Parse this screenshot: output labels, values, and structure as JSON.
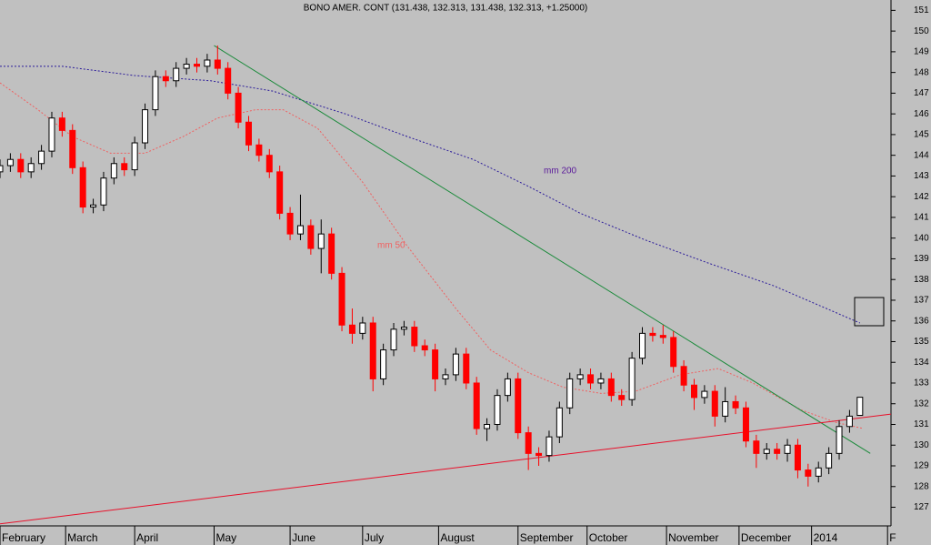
{
  "chart_data": {
    "type": "candlestick",
    "title": "BONO AMER. CONT (131.438, 132.313, 131.438, 132.313, +1.25000)",
    "up_color": "#000000",
    "down_color": "#ff0000",
    "x": [
      0,
      3,
      6,
      9,
      12,
      15,
      18,
      21,
      24,
      27,
      30,
      33,
      36,
      39,
      42,
      45,
      48,
      51,
      54,
      57,
      60,
      63,
      66,
      69,
      72,
      75,
      78,
      81,
      84,
      87,
      90,
      93,
      96,
      99,
      102,
      105,
      108,
      111,
      114,
      117,
      120,
      123,
      126,
      129,
      132,
      135,
      138,
      141,
      144,
      147,
      150,
      153,
      156,
      159,
      162,
      165,
      168,
      171,
      174,
      177,
      180,
      183,
      186,
      189,
      192,
      195,
      198,
      201,
      204,
      207,
      210,
      213,
      216,
      219,
      222,
      225,
      228,
      231,
      234,
      237,
      240,
      243,
      246,
      249
    ],
    "open": [
      143.2,
      143.5,
      143.8,
      143.2,
      143.6,
      144.2,
      145.8,
      145.2,
      143.4,
      141.5,
      141.6,
      142.9,
      143.6,
      143.3,
      144.6,
      146.2,
      147.8,
      147.6,
      148.2,
      148.4,
      148.3,
      148.6,
      148.2,
      147,
      145.6,
      144.5,
      144,
      143.2,
      141.2,
      140.2,
      140.6,
      139.5,
      140.2,
      138.3,
      135.8,
      135.4,
      135.9,
      133.2,
      134.6,
      135.6,
      135.7,
      134.8,
      134.6,
      133.2,
      133.4,
      134.4,
      133,
      130.8,
      131,
      132.4,
      133.2,
      130.6,
      129.6,
      129.5,
      130.4,
      131.8,
      133.2,
      133.4,
      133,
      133.2,
      132.4,
      132.2,
      134.2,
      135.4,
      135.3,
      135.2,
      133.8,
      132.9,
      132.3,
      132.6,
      131.4,
      132.1,
      131.8,
      130.2,
      129.6,
      129.8,
      129.6,
      130,
      128.8,
      128.5,
      128.9,
      129.6,
      130.9,
      131.438
    ],
    "high": [
      143.8,
      144.1,
      144.1,
      143.9,
      144.5,
      146.1,
      146.1,
      145.5,
      143.7,
      141.9,
      143.2,
      143.9,
      143.9,
      144.9,
      146.5,
      148.1,
      148.1,
      148.5,
      148.7,
      148.7,
      148.9,
      149.3,
      148.5,
      147.3,
      145.9,
      144.8,
      144.3,
      143.5,
      141.5,
      142.1,
      140.9,
      140.9,
      140.5,
      138.6,
      136.6,
      136.2,
      136.2,
      134.9,
      135.9,
      136,
      136,
      135.1,
      134.9,
      133.7,
      134.7,
      134.7,
      133.3,
      131.3,
      132.7,
      133.5,
      133.5,
      130.9,
      129.9,
      130.7,
      132.1,
      133.5,
      133.7,
      133.7,
      133.5,
      133.5,
      132.7,
      134.5,
      135.7,
      135.7,
      135.8,
      135.5,
      134.1,
      133.2,
      132.9,
      132.9,
      132.8,
      132.4,
      132.1,
      130.5,
      130.1,
      130.1,
      130.3,
      130.3,
      129.1,
      129.2,
      129.9,
      131.2,
      131.7,
      132.313
    ],
    "low": [
      142.9,
      143.2,
      142.9,
      142.9,
      143.3,
      143.9,
      144.9,
      143.1,
      141.2,
      141.2,
      141.3,
      142.6,
      143,
      143,
      144.3,
      145.9,
      147.3,
      147.3,
      147.9,
      148,
      148,
      147.9,
      146.7,
      145.3,
      144.2,
      143.7,
      142.9,
      140.9,
      139.9,
      139.9,
      139.2,
      138.3,
      138,
      135.5,
      134.9,
      135.1,
      132.6,
      132.9,
      134.3,
      135.3,
      134.5,
      134.3,
      132.6,
      132.9,
      133.1,
      132.7,
      130.5,
      130.2,
      130.7,
      132.1,
      130.3,
      128.8,
      129,
      129.2,
      130.1,
      131.5,
      132.9,
      132.7,
      132.7,
      132.1,
      131.9,
      131.9,
      133.9,
      135,
      134.9,
      133.5,
      132.6,
      131.7,
      132,
      130.9,
      131.1,
      131.5,
      129.9,
      128.9,
      129.3,
      129.3,
      129.2,
      128.4,
      128,
      128.2,
      128.6,
      129.3,
      130.6,
      131.438
    ],
    "close": [
      143.5,
      143.8,
      143.2,
      143.6,
      144.2,
      145.8,
      145.2,
      143.4,
      141.5,
      141.6,
      142.9,
      143.6,
      143.3,
      144.6,
      146.2,
      147.8,
      147.6,
      148.2,
      148.4,
      148.3,
      148.6,
      148.2,
      147,
      145.6,
      144.5,
      144,
      143.2,
      141.2,
      140.2,
      140.6,
      139.5,
      140.2,
      138.3,
      135.8,
      135.4,
      135.9,
      133.2,
      134.6,
      135.6,
      135.7,
      134.8,
      134.6,
      133.2,
      133.4,
      134.4,
      133,
      130.8,
      131,
      132.4,
      133.2,
      130.6,
      129.6,
      129.5,
      130.4,
      131.8,
      133.2,
      133.4,
      133,
      133.2,
      132.4,
      132.2,
      134.2,
      135.4,
      135.3,
      135.2,
      133.8,
      132.9,
      132.3,
      132.6,
      131.4,
      132.1,
      131.8,
      130.2,
      129.6,
      129.8,
      129.6,
      130,
      128.8,
      128.5,
      128.9,
      129.6,
      130.9,
      131.4,
      132.313
    ],
    "series": [
      {
        "name": "mm 200",
        "color": "#2a1a9a",
        "dash": true,
        "x": [
          0,
          18,
          39,
          61,
          79,
          100,
          118,
          137,
          153,
          168,
          187,
          205,
          224,
          249
        ],
        "values": [
          148.3,
          148.3,
          147.85,
          147.6,
          147.1,
          146,
          144.9,
          143.8,
          142.5,
          141.2,
          139.9,
          138.8,
          137.7,
          135.9
        ]
      },
      {
        "name": "mm 50",
        "color": "#f06060",
        "dash": true,
        "x": [
          0,
          11,
          21,
          32,
          42,
          53,
          63,
          74,
          82,
          92,
          105,
          118,
          132,
          142,
          153,
          163,
          174,
          184,
          197,
          208,
          218,
          232,
          242,
          250
        ],
        "values": [
          147.5,
          146.2,
          144.9,
          144.1,
          144.1,
          144.9,
          145.8,
          146.2,
          146.2,
          145.3,
          142.7,
          139.6,
          136.6,
          134.6,
          133.5,
          132.8,
          132.5,
          132.6,
          133.4,
          133.7,
          133,
          131.7,
          131.1,
          130.8
        ]
      },
      {
        "color": "#1a8a3a",
        "x": [
          62,
          252
        ],
        "values": [
          149.3,
          129.6
        ]
      },
      {
        "color": "#e8102a",
        "x": [
          0,
          258
        ],
        "values": [
          126.2,
          131.5
        ]
      }
    ],
    "xlim": [
      0,
      258
    ],
    "ylim": [
      126.1,
      151.5
    ],
    "xticks": [
      {
        "value": 0,
        "label": "February"
      },
      {
        "value": 19,
        "label": "March"
      },
      {
        "value": 39,
        "label": "April"
      },
      {
        "value": 62,
        "label": "May"
      },
      {
        "value": 84,
        "label": "June"
      },
      {
        "value": 105,
        "label": "July"
      },
      {
        "value": 127,
        "label": "August"
      },
      {
        "value": 150,
        "label": "September"
      },
      {
        "value": 170,
        "label": "October"
      },
      {
        "value": 193,
        "label": "November"
      },
      {
        "value": 214,
        "label": "December"
      },
      {
        "value": 235,
        "label": "2014"
      },
      {
        "value": 257,
        "label": "F"
      }
    ],
    "yticks": [
      127,
      128,
      129,
      130,
      131,
      132,
      133,
      134,
      135,
      136,
      137,
      138,
      139,
      140,
      141,
      142,
      143,
      144,
      145,
      146,
      147,
      148,
      149,
      150,
      151
    ]
  }
}
